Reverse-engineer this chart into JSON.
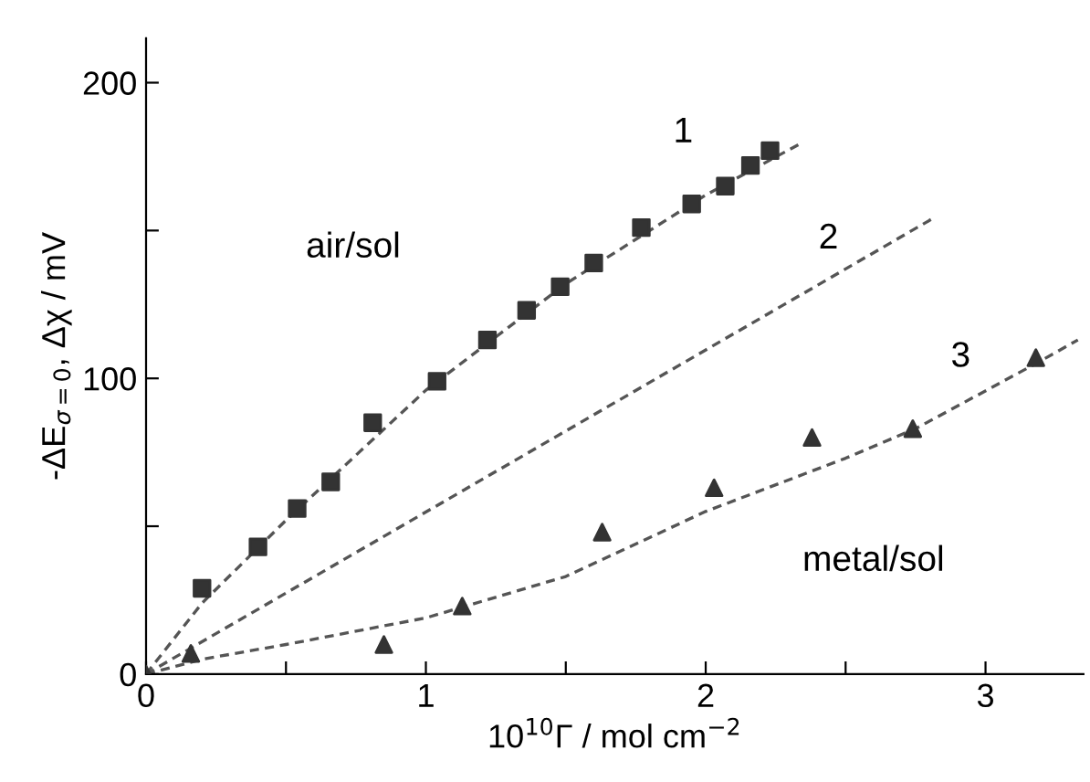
{
  "chart_data": {
    "type": "scatter",
    "xlabel": "10$^{10}$Γ / mol cm$^{−2}$",
    "ylabel": "-ΔE$_{σ=0}$, Δχ / mV",
    "xlim": [
      0,
      3.35
    ],
    "ylim": [
      0,
      215
    ],
    "xticks": [
      0,
      {
        "value": 0.5,
        "label": null
      },
      1,
      {
        "value": 1.5,
        "label": null
      },
      2,
      {
        "value": 2.5,
        "label": null
      },
      3
    ],
    "yticks": [
      0,
      {
        "value": 50,
        "label": null
      },
      100,
      {
        "value": 150,
        "label": null
      },
      200
    ],
    "grid": false,
    "legend": false,
    "series": [
      {
        "marker": "square",
        "color": "#333333",
        "x": [
          0.2,
          0.4,
          0.54,
          0.66,
          0.81,
          1.04,
          1.22,
          1.36,
          1.48,
          1.6,
          1.77,
          1.95,
          2.07,
          2.16,
          2.23
        ],
        "values": [
          29,
          43,
          56,
          65,
          85,
          99,
          113,
          123,
          131,
          139,
          151,
          159,
          165,
          172,
          177
        ]
      },
      {
        "marker": "triangle",
        "color": "#333333",
        "x": [
          0,
          0.16,
          0.85,
          1.13,
          1.63,
          2.03,
          2.38,
          2.74,
          3.18
        ],
        "values": [
          0,
          7,
          10,
          23,
          48,
          63,
          80,
          83,
          107
        ]
      },
      {
        "type": "line",
        "line_style": "dashed",
        "color": "#555555",
        "x": [
          0,
          0.2,
          0.5,
          1.0,
          1.5,
          2.0,
          2.35
        ],
        "values": [
          0,
          24,
          52,
          96,
          132,
          162,
          180
        ]
      },
      {
        "type": "line",
        "line_style": "dashed",
        "color": "#555555",
        "x": [
          0,
          2.81
        ],
        "values": [
          0,
          154
        ]
      },
      {
        "type": "line",
        "line_style": "dashed",
        "color": "#555555",
        "x": [
          0,
          0.2,
          0.5,
          1.0,
          1.5,
          2.0,
          2.5,
          2.75,
          3.18,
          3.33
        ],
        "values": [
          0,
          5,
          10,
          19,
          33,
          55,
          73,
          83,
          105,
          113
        ]
      }
    ],
    "annotations": [
      "1",
      "2",
      "3",
      "air/sol",
      "metal/sol"
    ]
  }
}
